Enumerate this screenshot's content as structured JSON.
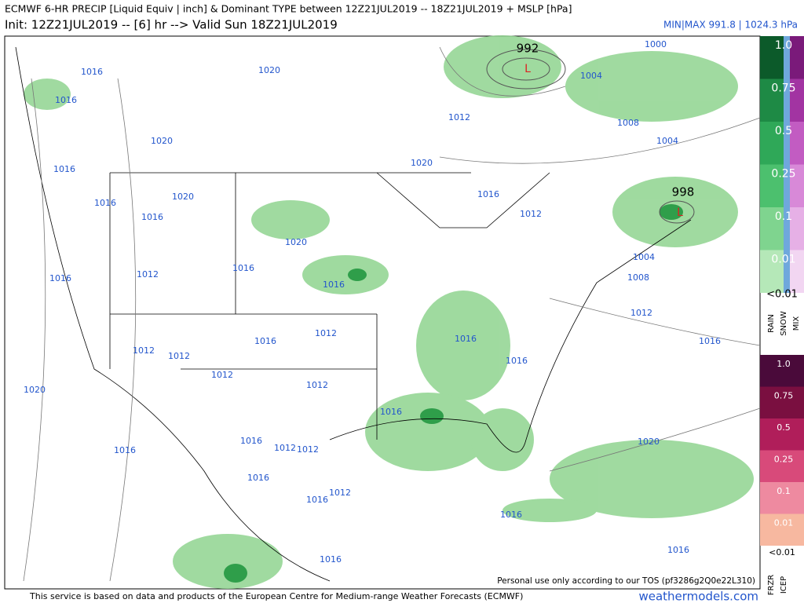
{
  "header": {
    "title": "ECMWF 6-HR PRECIP [Liquid Equiv | inch] & Dominant TYPE between 12Z21JUL2019 -- 18Z21JUL2019 + MSLP [hPa]",
    "init": "Init: 12Z21JUL2019 -- [6] hr --> Valid Sun 18Z21JUL2019",
    "minmax": "MIN|MAX 991.8 | 1024.3 hPa"
  },
  "map": {
    "lows": [
      {
        "pressure": "992",
        "symbol": "L"
      },
      {
        "pressure": "998",
        "symbol": "L"
      }
    ],
    "pressure_labels": [
      "1016",
      "1016",
      "1020",
      "1012",
      "1004",
      "1000",
      "1008",
      "1004",
      "1020",
      "1020",
      "1016",
      "1016",
      "1020",
      "1016",
      "1016",
      "1012",
      "1020",
      "1016",
      "1012",
      "1004",
      "1008",
      "1016",
      "1016",
      "1012",
      "1012",
      "1016",
      "1016",
      "1012",
      "1012",
      "1016",
      "1016",
      "1012",
      "1012",
      "1020",
      "1016",
      "1020",
      "1016",
      "1012",
      "1012",
      "1016",
      "1016",
      "1012",
      "1016",
      "1016",
      "1016",
      "1016"
    ],
    "tos_note": "Personal use only according to our TOS (pf3286g2Q0e22L310)"
  },
  "legend": {
    "rain_levels": [
      "1.0",
      "0.75",
      "0.5",
      "0.25",
      "0.1",
      "0.01"
    ],
    "rain_below": "<0.01",
    "rain_types": [
      "RAIN",
      "SNOW",
      "MIX"
    ],
    "ice_levels": [
      "1.0",
      "0.75",
      "0.5",
      "0.25",
      "0.1",
      "0.01"
    ],
    "ice_below": "<0.01",
    "ice_types": [
      "FRZR",
      "ICEP"
    ]
  },
  "footer": {
    "credit": "This service is based on data and products of the European Centre for Medium-range Weather Forecasts (ECMWF)",
    "site": "weathermodels.com"
  }
}
